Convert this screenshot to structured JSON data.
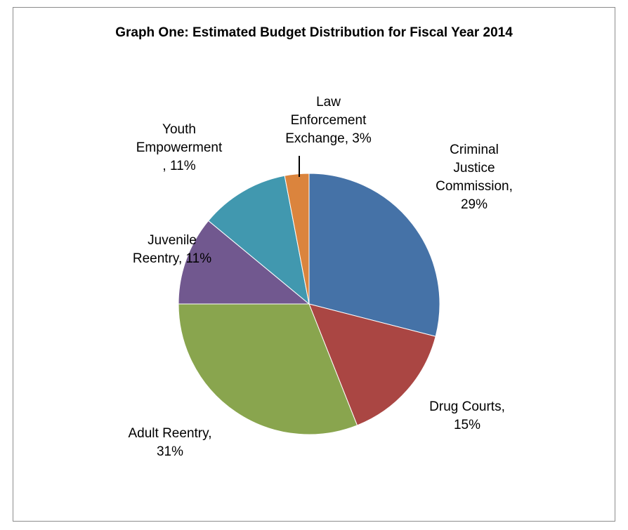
{
  "chart_data": {
    "type": "pie",
    "title": "Graph One: Estimated Budget Distribution for Fiscal Year 2014",
    "slices": [
      {
        "name": "Criminal Justice Commission",
        "value": 29,
        "label": "Criminal\nJustice\nCommission,\n29%",
        "color": "#4572a7"
      },
      {
        "name": "Drug Courts",
        "value": 15,
        "label": "Drug Courts,\n15%",
        "color": "#aa4643"
      },
      {
        "name": "Adult Reentry",
        "value": 31,
        "label": "Adult Reentry,\n31%",
        "color": "#89a54e"
      },
      {
        "name": "Juvenile Reentry",
        "value": 11,
        "label": "Juvenile\nReentry, 11%",
        "color": "#71588f"
      },
      {
        "name": "Youth Empowerment",
        "value": 11,
        "label": "Youth\nEmpowerment\n, 11%",
        "color": "#4198af"
      },
      {
        "name": "Law Enforcement Exchange",
        "value": 3,
        "label": "Law\nEnforcement\nExchange, 3%",
        "color": "#db843d"
      }
    ],
    "start_angle": "top",
    "direction": "clockwise",
    "legend": "none"
  }
}
